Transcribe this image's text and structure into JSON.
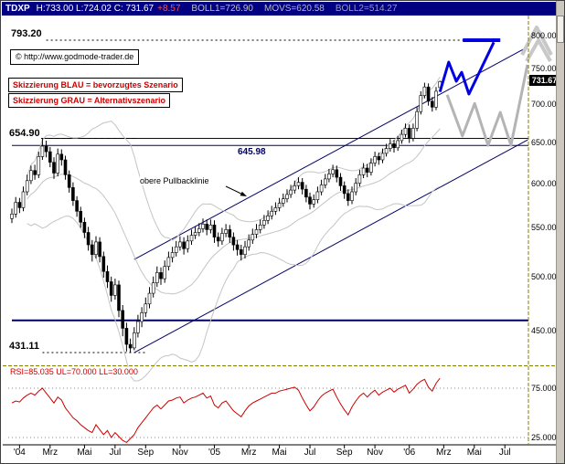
{
  "title_bar": {
    "symbol": "TDXP",
    "ohlc": "H:733.00 L:724.02 C: 731.67",
    "change": "+8.57",
    "boll1": "BOLL1=726.90",
    "movs": "MOVS=620.58",
    "boll2": "BOLL2=514.27"
  },
  "annotations": {
    "copyright": "© http://www.godmode-trader.de",
    "scenario_blue_note": "Skizzierung BLAU = bevorzugtes Szenario",
    "scenario_gray_note": "Skizzierung GRAU = Alternativszenario",
    "pullback_label": "obere Pullbacklinie",
    "level_top_label": "793.20",
    "level_resistance_label": "654.90",
    "level_resistance2_label": "645.98",
    "level_low_label": "431.11",
    "pullback_arrow": {
      "from": [
        246,
        203
      ],
      "to": [
        269,
        214
      ]
    }
  },
  "price_axis": {
    "current": "731.67"
  },
  "colors": {
    "titlebar_bg": "#000080",
    "accent_blue": "#0000e0",
    "scenario_gray": "#b4b4b4",
    "arrow_gray": "#c8c8c8",
    "navy_line": "#000066",
    "boll_gray": "#c4c4c4",
    "rsi_red": "#cc0000",
    "annotation_red": "#cc0000",
    "separator_olive": "#808000",
    "current_price_bg": "#000000"
  },
  "chart_data": [
    {
      "type": "candlestick",
      "symbol": "TDXP",
      "timeframe": "weekly",
      "y_scale": "log",
      "ylim": [
        420,
        810
      ],
      "y_ticks": [
        {
          "value": 800,
          "label": "800.00"
        },
        {
          "value": 750,
          "label": "750.00"
        },
        {
          "value": 700,
          "label": "700.00"
        },
        {
          "value": 650,
          "label": "650.00"
        },
        {
          "value": 600,
          "label": "600.00"
        },
        {
          "value": 550,
          "label": "550.00"
        },
        {
          "value": 500,
          "label": "500.00"
        },
        {
          "value": 450,
          "label": "450.00"
        }
      ],
      "x_ticks": [
        {
          "w": 2,
          "label": "'04"
        },
        {
          "w": 10,
          "label": "Mrz"
        },
        {
          "w": 19,
          "label": "Mai"
        },
        {
          "w": 27,
          "label": "Jul"
        },
        {
          "w": 35,
          "label": "Sep"
        },
        {
          "w": 44,
          "label": "Nov"
        },
        {
          "w": 53,
          "label": "'05"
        },
        {
          "w": 62,
          "label": "Mrz"
        },
        {
          "w": 70,
          "label": "Mai"
        },
        {
          "w": 78,
          "label": "Jul"
        },
        {
          "w": 87,
          "label": "Sep"
        },
        {
          "w": 95,
          "label": "Nov"
        },
        {
          "w": 104,
          "label": "'06"
        },
        {
          "w": 113,
          "label": "Mrz"
        },
        {
          "w": 121,
          "label": "Mai"
        },
        {
          "w": 129,
          "label": "Jul"
        }
      ],
      "candles": [
        [
          560,
          571,
          555,
          565
        ],
        [
          565,
          584,
          561,
          578
        ],
        [
          578,
          583,
          566,
          572
        ],
        [
          572,
          596,
          568,
          590
        ],
        [
          590,
          610,
          586,
          603
        ],
        [
          603,
          621,
          599,
          615
        ],
        [
          615,
          622,
          604,
          610
        ],
        [
          610,
          638,
          606,
          632
        ],
        [
          632,
          654.9,
          628,
          645
        ],
        [
          645,
          652,
          631,
          638
        ],
        [
          638,
          644,
          619,
          625
        ],
        [
          625,
          631,
          605,
          612
        ],
        [
          612,
          642,
          608,
          635
        ],
        [
          635,
          641,
          621,
          628
        ],
        [
          628,
          633,
          604,
          610
        ],
        [
          610,
          615,
          589,
          595
        ],
        [
          595,
          601,
          574,
          580
        ],
        [
          580,
          585,
          562,
          568
        ],
        [
          568,
          573,
          550,
          556
        ],
        [
          556,
          561,
          539,
          545
        ],
        [
          545,
          551,
          526,
          532
        ],
        [
          532,
          537,
          515,
          522
        ],
        [
          522,
          541,
          518,
          535
        ],
        [
          535,
          540,
          514,
          520
        ],
        [
          520,
          525,
          499,
          505
        ],
        [
          505,
          511,
          489,
          495
        ],
        [
          495,
          500,
          476,
          482
        ],
        [
          482,
          498,
          478,
          492
        ],
        [
          492,
          496,
          462,
          468
        ],
        [
          468,
          473,
          445,
          452
        ],
        [
          452,
          457,
          432,
          438
        ],
        [
          438,
          443,
          431.11,
          435
        ],
        [
          435,
          453,
          433,
          448
        ],
        [
          448,
          464,
          444,
          458
        ],
        [
          458,
          471,
          453,
          466
        ],
        [
          466,
          480,
          462,
          474
        ],
        [
          474,
          490,
          470,
          484
        ],
        [
          484,
          500,
          480,
          494
        ],
        [
          494,
          510,
          490,
          504
        ],
        [
          504,
          509,
          492,
          498
        ],
        [
          498,
          516,
          494,
          510
        ],
        [
          510,
          525,
          506,
          519
        ],
        [
          519,
          530,
          514,
          524
        ],
        [
          524,
          536,
          520,
          530
        ],
        [
          530,
          541,
          526,
          535
        ],
        [
          535,
          540,
          522,
          528
        ],
        [
          528,
          542,
          524,
          536
        ],
        [
          536,
          548,
          532,
          542
        ],
        [
          542,
          551,
          538,
          545
        ],
        [
          545,
          555,
          541,
          549
        ],
        [
          549,
          560,
          545,
          554
        ],
        [
          554,
          559,
          542,
          548
        ],
        [
          548,
          559,
          544,
          553
        ],
        [
          553,
          558,
          534,
          540
        ],
        [
          540,
          545,
          530,
          536
        ],
        [
          536,
          550,
          532,
          544
        ],
        [
          544,
          554,
          540,
          548
        ],
        [
          548,
          553,
          534,
          540
        ],
        [
          540,
          545,
          526,
          532
        ],
        [
          532,
          537,
          521,
          527
        ],
        [
          527,
          532,
          516,
          522
        ],
        [
          522,
          536,
          518,
          530
        ],
        [
          530,
          543,
          526,
          537
        ],
        [
          537,
          549,
          533,
          543
        ],
        [
          543,
          554,
          539,
          548
        ],
        [
          548,
          559,
          544,
          553
        ],
        [
          553,
          564,
          549,
          558
        ],
        [
          558,
          569,
          554,
          563
        ],
        [
          563,
          574,
          559,
          568
        ],
        [
          568,
          578,
          564,
          572
        ],
        [
          572,
          583,
          568,
          577
        ],
        [
          577,
          588,
          573,
          582
        ],
        [
          582,
          593,
          578,
          587
        ],
        [
          587,
          598,
          583,
          592
        ],
        [
          592,
          603,
          588,
          597
        ],
        [
          597,
          607,
          593,
          601
        ],
        [
          601,
          606,
          587,
          593
        ],
        [
          593,
          598,
          578,
          584
        ],
        [
          584,
          589,
          570,
          576
        ],
        [
          576,
          587,
          572,
          581
        ],
        [
          581,
          596,
          577,
          590
        ],
        [
          590,
          604,
          586,
          598
        ],
        [
          598,
          611,
          594,
          605
        ],
        [
          605,
          617,
          601,
          611
        ],
        [
          611,
          622,
          607,
          616
        ],
        [
          616,
          621,
          601,
          607
        ],
        [
          607,
          612,
          591,
          597
        ],
        [
          597,
          602,
          582,
          588
        ],
        [
          588,
          593,
          574,
          580
        ],
        [
          580,
          596,
          576,
          590
        ],
        [
          590,
          606,
          586,
          600
        ],
        [
          600,
          616,
          596,
          610
        ],
        [
          610,
          624,
          606,
          618
        ],
        [
          618,
          623,
          607,
          613
        ],
        [
          613,
          630,
          609,
          624
        ],
        [
          624,
          638,
          620,
          632
        ],
        [
          632,
          637,
          622,
          628
        ],
        [
          628,
          642,
          624,
          636
        ],
        [
          636,
          648,
          632,
          642
        ],
        [
          642,
          654,
          638,
          648
        ],
        [
          648,
          653,
          637,
          643
        ],
        [
          643,
          658,
          639,
          652
        ],
        [
          652,
          666,
          648,
          660
        ],
        [
          660,
          674,
          656,
          668
        ],
        [
          668,
          673,
          649,
          655
        ],
        [
          655,
          674,
          651,
          668
        ],
        [
          668,
          696,
          664,
          690
        ],
        [
          690,
          718,
          686,
          712
        ],
        [
          712,
          730,
          708,
          724
        ],
        [
          724,
          729,
          698,
          704
        ],
        [
          704,
          710,
          690,
          696
        ],
        [
          696,
          724,
          692,
          718
        ],
        [
          723.1,
          733,
          724.02,
          731.67
        ]
      ],
      "level_lines": [
        {
          "price": 793.2,
          "from_week": 9,
          "to_week": 127.5,
          "color": "#000000",
          "dash": "2,3",
          "width": 1
        },
        {
          "price": 654.9,
          "from_week": 0,
          "to_week": 135.2,
          "color": "#000066",
          "width": 1
        },
        {
          "price": 654.9,
          "from_week": 8,
          "to_week": 33,
          "color": "#000000",
          "dash": "4,3",
          "width": 1
        },
        {
          "price": 645.98,
          "from_week": 0,
          "to_week": 135.2,
          "color": "#000066",
          "width": 1
        },
        {
          "price": 459,
          "from_week": 0,
          "to_week": 135.2,
          "color": "#000066",
          "width": 2
        },
        {
          "price": 431.11,
          "from_week": 8,
          "to_week": 35,
          "color": "#000000",
          "dash": "2,3",
          "width": 1
        }
      ],
      "trend_lines": [
        {
          "name": "untere Kanallinie",
          "from": [
            32,
            431
          ],
          "to": [
            135,
            653
          ],
          "color": "#000066",
          "width": 1
        },
        {
          "name": "obere Pullbacklinie",
          "from": [
            32,
            517
          ],
          "to": [
            135,
            783
          ],
          "color": "#000066",
          "width": 1
        }
      ],
      "scenario_blue": {
        "name": "bevorzugtes Szenario",
        "color": "#0000e0",
        "width": 3,
        "line": [
          [
            112,
            717
          ],
          [
            114.3,
            760
          ],
          [
            116.3,
            732
          ],
          [
            117.7,
            745
          ],
          [
            119.6,
            714
          ],
          [
            126.1,
            790
          ]
        ],
        "target_bar": {
          "price": 793.2,
          "from_week": 118,
          "to_week": 127.8,
          "width": 4
        }
      },
      "scenario_gray": {
        "name": "Alternativszenario",
        "color": "#b4b4b4",
        "width": 3,
        "line": [
          [
            113.9,
            713
          ],
          [
            117.9,
            658
          ],
          [
            121.1,
            701
          ],
          [
            124.6,
            646
          ],
          [
            127.8,
            689
          ],
          [
            130.6,
            646
          ],
          [
            134.9,
            756
          ]
        ],
        "arrows": [
          [
            [
              570,
              59
            ],
            [
              586,
              29
            ],
            [
              602,
              59
            ]
          ],
          [
            [
              575,
              66
            ],
            [
              588,
              43
            ],
            [
              601,
              66
            ]
          ]
        ]
      },
      "indicators": {
        "boll1": 726.9,
        "movs": 620.58,
        "boll2": 514.27
      }
    },
    {
      "type": "line",
      "name": "RSI",
      "label": "RSI=85.035 UL=70.000 LL=30.000",
      "current": 85.035,
      "upper_limit": 70.0,
      "lower_limit": 30.0,
      "color": "#cc0000",
      "grid_ticks": [
        {
          "value": 75,
          "label": "75.000"
        },
        {
          "value": 25,
          "label": "25.000"
        }
      ],
      "values": [
        60,
        62,
        61,
        65,
        68,
        70,
        68,
        72,
        75,
        70,
        65,
        60,
        66,
        63,
        55,
        50,
        45,
        42,
        38,
        35,
        32,
        30,
        38,
        33,
        28,
        32,
        25,
        30,
        26,
        22,
        20,
        24,
        28,
        35,
        40,
        45,
        50,
        55,
        58,
        54,
        58,
        62,
        63,
        65,
        66,
        60,
        63,
        65,
        66,
        68,
        70,
        65,
        67,
        58,
        55,
        60,
        62,
        57,
        52,
        49,
        46,
        52,
        57,
        60,
        62,
        64,
        66,
        68,
        70,
        70,
        72,
        73,
        74,
        75,
        76,
        73,
        65,
        58,
        52,
        56,
        62,
        67,
        70,
        72,
        74,
        66,
        59,
        53,
        48,
        56,
        62,
        67,
        70,
        66,
        70,
        73,
        68,
        71,
        73,
        75,
        71,
        74,
        76,
        78,
        70,
        74,
        79,
        82,
        84,
        76,
        72,
        80,
        85.035
      ]
    }
  ]
}
